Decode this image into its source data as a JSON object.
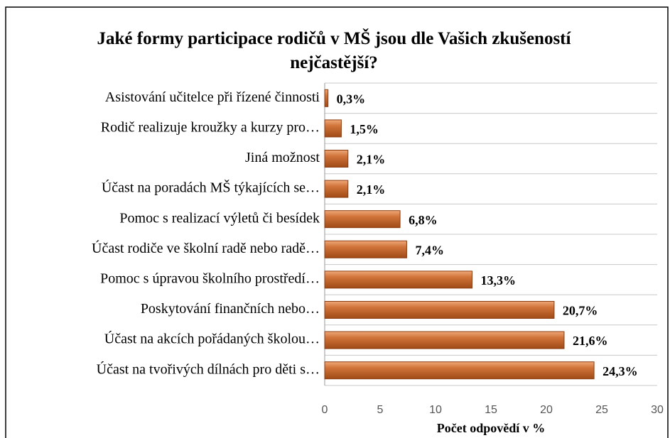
{
  "chart_data": {
    "type": "barh",
    "title": "Jaké formy participace rodičů v MŠ jsou dle Vašich zkušeností nejčastější?",
    "xlabel": "Počet odpovědí v %",
    "categories": [
      "Asistování učitelce při řízené činnosti",
      "Rodič realizuje kroužky a kurzy pro…",
      "Jiná možnost",
      "Účast na poradách MŠ týkajících se…",
      "Pomoc s realizací výletů či besídek",
      "Účast rodiče ve školní radě nebo radě…",
      "Pomoc s úpravou školního prostředí…",
      "Poskytování finančních nebo…",
      "Účast na akcích pořádaných školou…",
      "Účast na tvořivých dílnách pro děti s…"
    ],
    "values": [
      0.3,
      1.5,
      2.1,
      2.1,
      6.8,
      7.4,
      13.3,
      20.7,
      21.6,
      24.3
    ],
    "value_labels": [
      "0,3%",
      "1,5%",
      "2,1%",
      "2,1%",
      "6,8%",
      "7,4%",
      "13,3%",
      "20,7%",
      "21,6%",
      "24,3%"
    ],
    "color": "#c0622a",
    "xlim": [
      0,
      30
    ],
    "xticks": [
      0,
      5,
      10,
      15,
      20,
      25,
      30
    ],
    "grid": true
  }
}
